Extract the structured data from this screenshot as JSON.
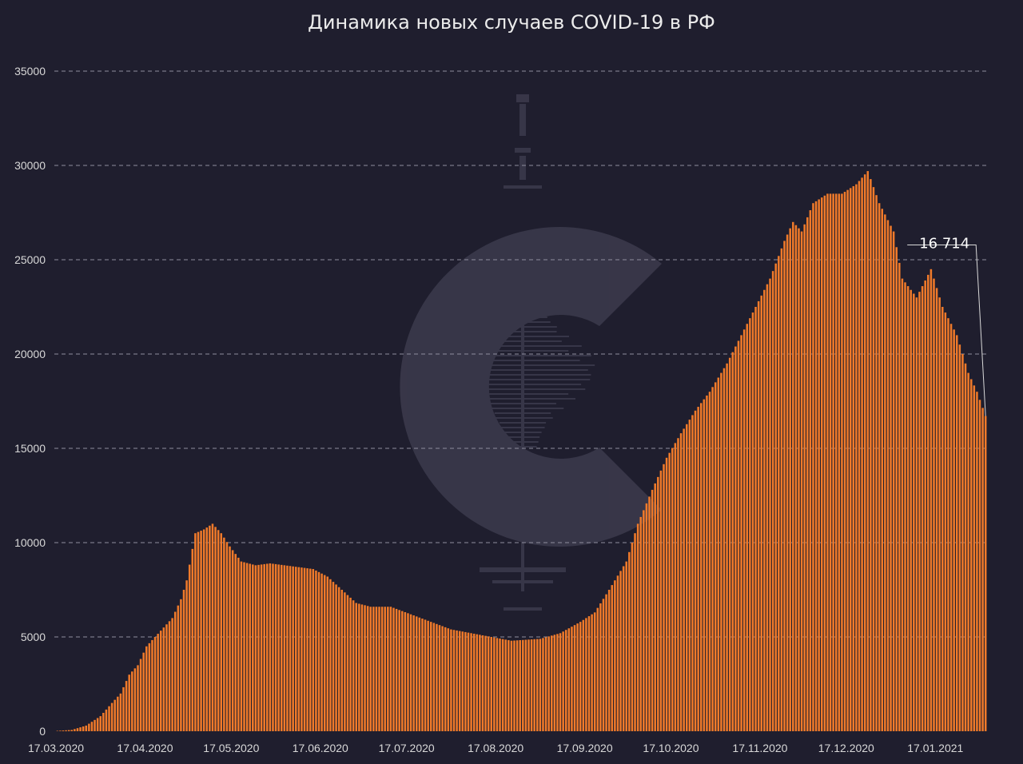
{
  "chart_data": {
    "type": "bar",
    "title": "Динамика новых случаев COVID-19 в РФ",
    "xlabel": "",
    "ylabel": "",
    "x_start": "17.03.2020",
    "x_end": "03.02.2021",
    "ylim": [
      0,
      35000
    ],
    "y_ticks": [
      "0",
      "5000",
      "10000",
      "15000",
      "20000",
      "25000",
      "30000",
      "35000"
    ],
    "y_tick_values": [
      0,
      5000,
      10000,
      15000,
      20000,
      25000,
      30000,
      35000
    ],
    "x_tick_labels": [
      "17.03.2020",
      "17.04.2020",
      "17.05.2020",
      "17.06.2020",
      "17.07.2020",
      "17.08.2020",
      "17.09.2020",
      "17.10.2020",
      "17.11.2020",
      "17.12.2020",
      "17.01.2021"
    ],
    "bar_color": "#f07a2a",
    "background_color": "#1f1e2e",
    "grid": "horizontal dashed",
    "annotation": {
      "text": "16 714",
      "date": "03.02.2021",
      "value": 16714
    },
    "anchors": [
      [
        "17.03.2020",
        20
      ],
      [
        "22.03.2020",
        70
      ],
      [
        "27.03.2020",
        300
      ],
      [
        "01.04.2020",
        800
      ],
      [
        "05.04.2020",
        1500
      ],
      [
        "08.04.2020",
        2000
      ],
      [
        "11.04.2020",
        3000
      ],
      [
        "14.04.2020",
        3500
      ],
      [
        "17.04.2020",
        4500
      ],
      [
        "20.04.2020",
        5000
      ],
      [
        "23.04.2020",
        5500
      ],
      [
        "26.04.2020",
        6000
      ],
      [
        "29.04.2020",
        7000
      ],
      [
        "01.05.2020",
        8000
      ],
      [
        "04.05.2020",
        10500
      ],
      [
        "07.05.2020",
        10700
      ],
      [
        "10.05.2020",
        11000
      ],
      [
        "13.05.2020",
        10500
      ],
      [
        "16.05.2020",
        9800
      ],
      [
        "20.05.2020",
        9000
      ],
      [
        "25.05.2020",
        8800
      ],
      [
        "30.05.2020",
        8900
      ],
      [
        "04.06.2020",
        8800
      ],
      [
        "09.06.2020",
        8700
      ],
      [
        "14.06.2020",
        8600
      ],
      [
        "19.06.2020",
        8200
      ],
      [
        "24.06.2020",
        7500
      ],
      [
        "29.06.2020",
        6800
      ],
      [
        "04.07.2020",
        6600
      ],
      [
        "11.07.2020",
        6600
      ],
      [
        "18.07.2020",
        6200
      ],
      [
        "25.07.2020",
        5800
      ],
      [
        "01.08.2020",
        5400
      ],
      [
        "08.08.2020",
        5200
      ],
      [
        "15.08.2020",
        5000
      ],
      [
        "22.08.2020",
        4800
      ],
      [
        "01.09.2020",
        4900
      ],
      [
        "08.09.2020",
        5200
      ],
      [
        "15.09.2020",
        5800
      ],
      [
        "20.09.2020",
        6300
      ],
      [
        "25.09.2020",
        7500
      ],
      [
        "01.10.2020",
        9000
      ],
      [
        "05.10.2020",
        11000
      ],
      [
        "10.10.2020",
        12800
      ],
      [
        "15.10.2020",
        14500
      ],
      [
        "20.10.2020",
        15800
      ],
      [
        "25.10.2020",
        17000
      ],
      [
        "30.10.2020",
        18000
      ],
      [
        "05.11.2020",
        19500
      ],
      [
        "10.11.2020",
        21000
      ],
      [
        "15.11.2020",
        22500
      ],
      [
        "20.11.2020",
        24000
      ],
      [
        "25.11.2020",
        26000
      ],
      [
        "28.11.2020",
        27000
      ],
      [
        "01.12.2020",
        26500
      ],
      [
        "05.12.2020",
        28000
      ],
      [
        "10.12.2020",
        28500
      ],
      [
        "15.12.2020",
        28500
      ],
      [
        "20.12.2020",
        29000
      ],
      [
        "24.12.2020",
        29700
      ],
      [
        "28.12.2020",
        28000
      ],
      [
        "02.01.2021",
        26500
      ],
      [
        "05.01.2021",
        24000
      ],
      [
        "10.01.2021",
        23000
      ],
      [
        "15.01.2021",
        24500
      ],
      [
        "19.01.2021",
        22500
      ],
      [
        "24.01.2021",
        21000
      ],
      [
        "28.01.2021",
        19000
      ],
      [
        "31.01.2021",
        18000
      ],
      [
        "03.02.2021",
        16714
      ]
    ]
  },
  "watermark": {
    "icon": "c-logo-watermark"
  }
}
